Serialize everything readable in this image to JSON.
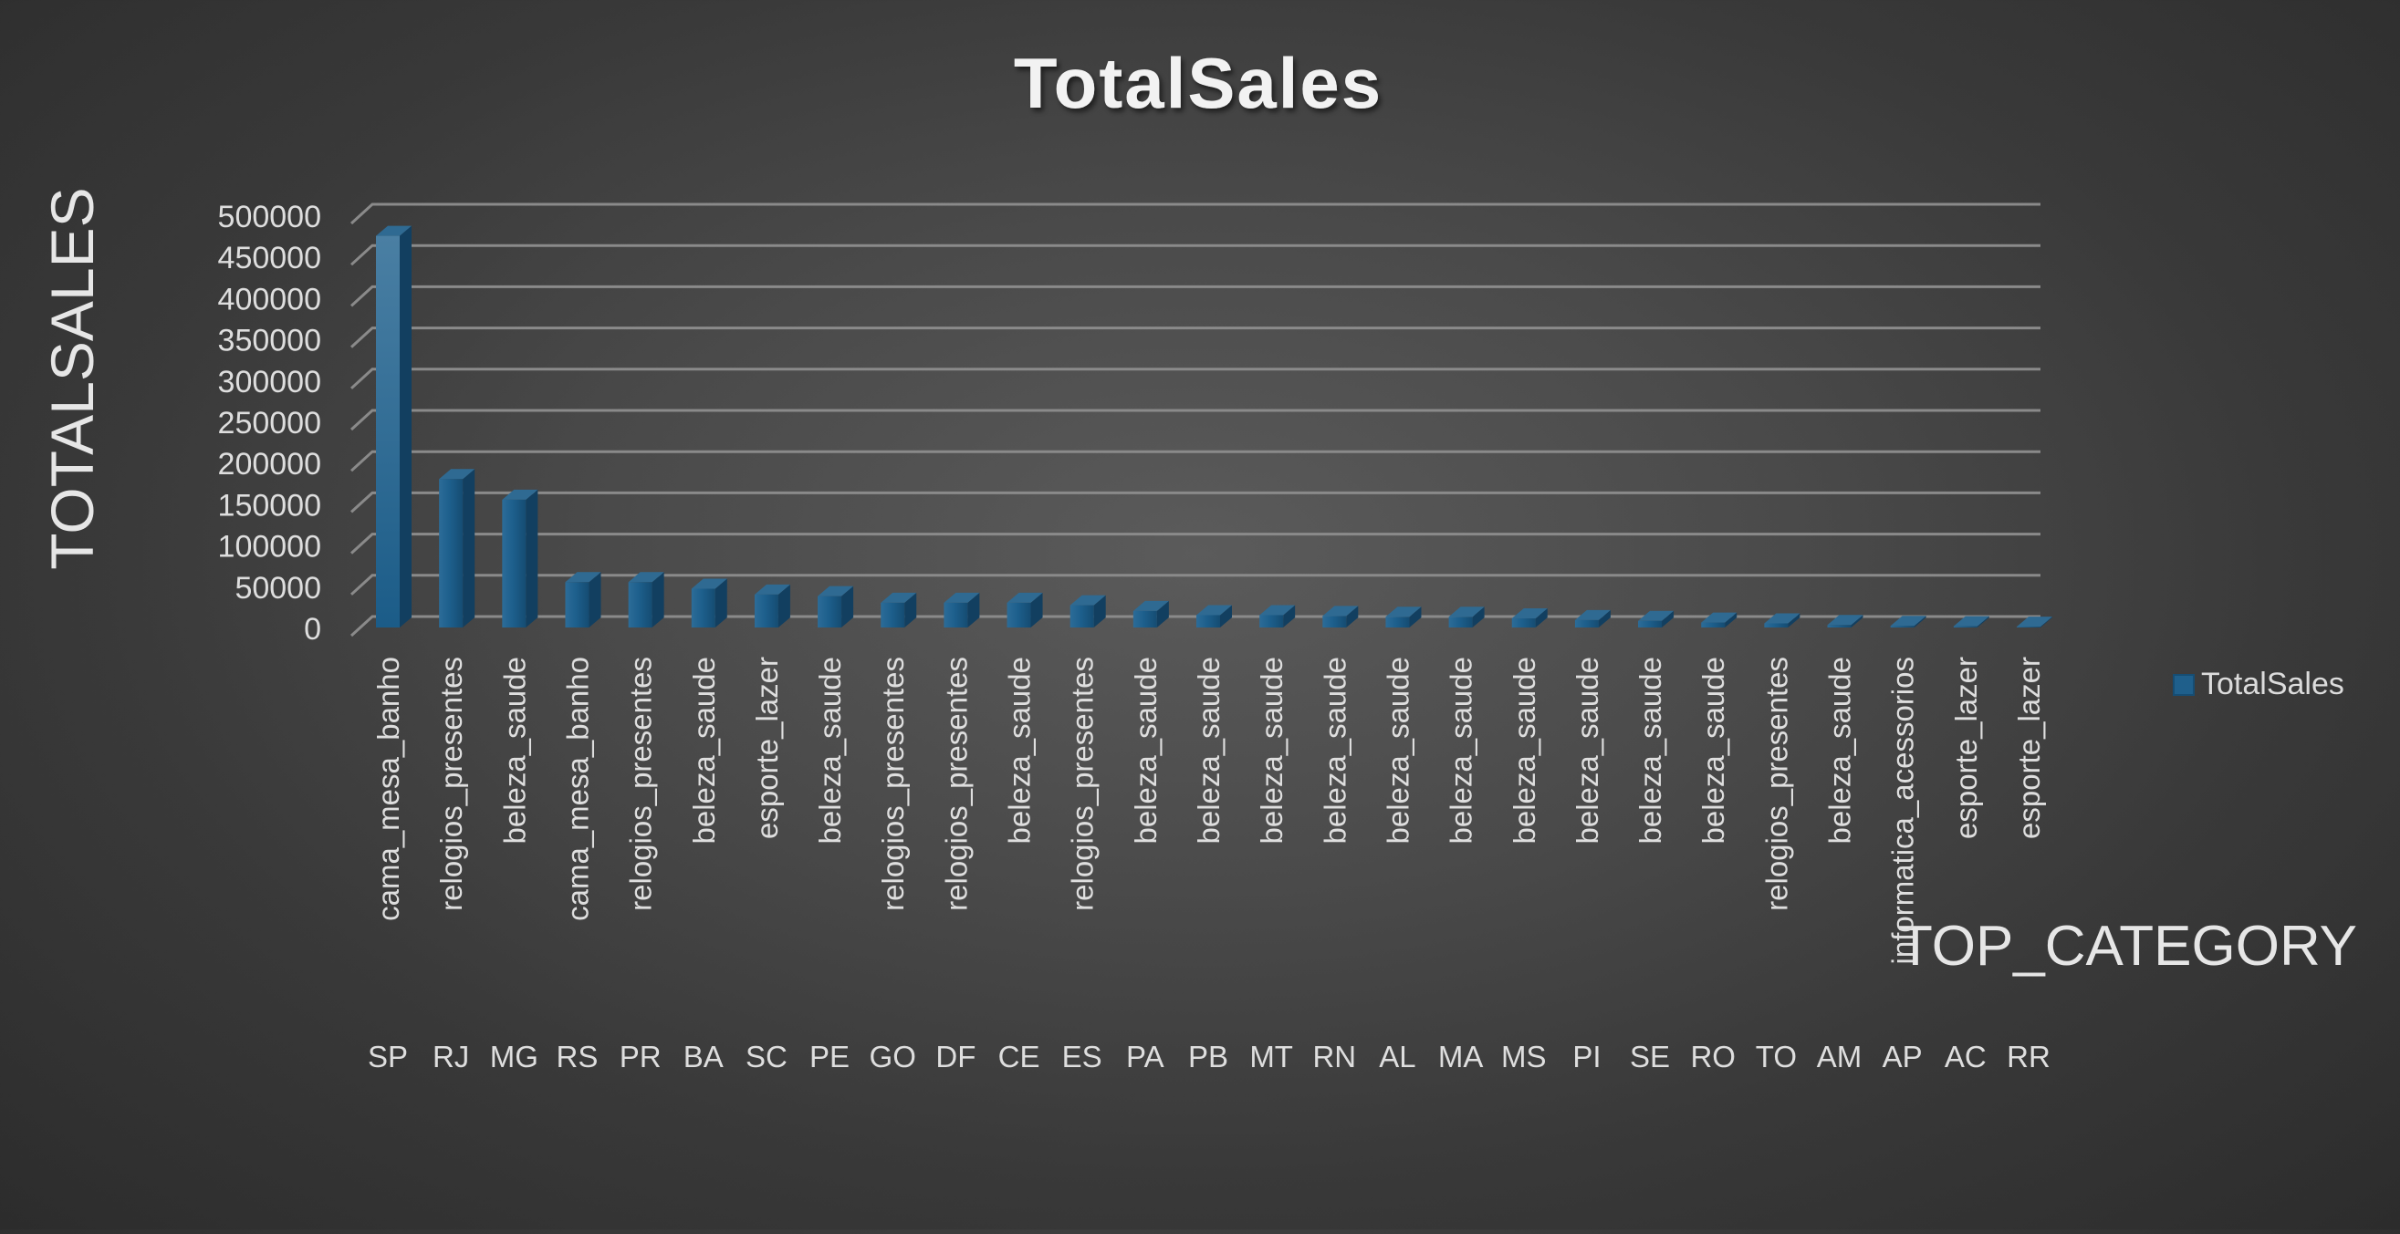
{
  "chart_data": {
    "type": "bar",
    "title": "TotalSales",
    "xlabel": "TOP_CATEGORY",
    "ylabel": "TOTALSALES",
    "ylim": [
      0,
      500000
    ],
    "ytick_step": 50000,
    "grid": true,
    "legend_position": "right",
    "three_d": true,
    "categories": [
      {
        "state": "SP",
        "category": "cama_mesa_banho"
      },
      {
        "state": "RJ",
        "category": "relogios_presentes"
      },
      {
        "state": "MG",
        "category": "beleza_saude"
      },
      {
        "state": "RS",
        "category": "cama_mesa_banho"
      },
      {
        "state": "PR",
        "category": "relogios_presentes"
      },
      {
        "state": "BA",
        "category": "beleza_saude"
      },
      {
        "state": "SC",
        "category": "esporte_lazer"
      },
      {
        "state": "PE",
        "category": "beleza_saude"
      },
      {
        "state": "GO",
        "category": "relogios_presentes"
      },
      {
        "state": "DF",
        "category": "relogios_presentes"
      },
      {
        "state": "CE",
        "category": "beleza_saude"
      },
      {
        "state": "ES",
        "category": "relogios_presentes"
      },
      {
        "state": "PA",
        "category": "beleza_saude"
      },
      {
        "state": "PB",
        "category": "beleza_saude"
      },
      {
        "state": "MT",
        "category": "beleza_saude"
      },
      {
        "state": "RN",
        "category": "beleza_saude"
      },
      {
        "state": "AL",
        "category": "beleza_saude"
      },
      {
        "state": "MA",
        "category": "beleza_saude"
      },
      {
        "state": "MS",
        "category": "beleza_saude"
      },
      {
        "state": "PI",
        "category": "beleza_saude"
      },
      {
        "state": "SE",
        "category": "beleza_saude"
      },
      {
        "state": "RO",
        "category": "beleza_saude"
      },
      {
        "state": "TO",
        "category": "relogios_presentes"
      },
      {
        "state": "AM",
        "category": "beleza_saude"
      },
      {
        "state": "AP",
        "category": "informatica_acessorios"
      },
      {
        "state": "AC",
        "category": "esporte_lazer"
      },
      {
        "state": "RR",
        "category": "esporte_lazer"
      }
    ],
    "series": [
      {
        "name": "TotalSales",
        "color": "#1f5f8b",
        "values": [
          475000,
          180000,
          155000,
          55000,
          55000,
          47000,
          40000,
          38000,
          30000,
          30000,
          30000,
          27000,
          20000,
          15000,
          15000,
          14000,
          13000,
          13000,
          11000,
          9000,
          8000,
          6000,
          5000,
          3000,
          2000,
          1500,
          1000
        ]
      }
    ]
  }
}
